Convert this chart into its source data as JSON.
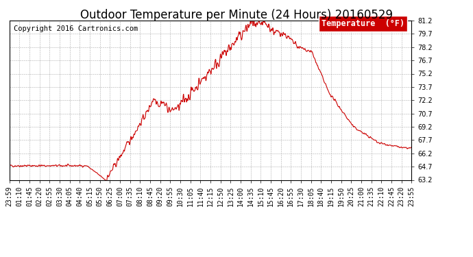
{
  "title": "Outdoor Temperature per Minute (24 Hours) 20160529",
  "copyright": "Copyright 2016 Cartronics.com",
  "legend_label": "Temperature  (°F)",
  "line_color": "#cc0000",
  "background_color": "#ffffff",
  "grid_color": "#999999",
  "ylim": [
    63.2,
    81.2
  ],
  "yticks": [
    63.2,
    64.7,
    66.2,
    67.7,
    69.2,
    70.7,
    72.2,
    73.7,
    75.2,
    76.7,
    78.2,
    79.7,
    81.2
  ],
  "xtick_labels": [
    "23:59",
    "01:10",
    "01:45",
    "02:20",
    "02:55",
    "03:30",
    "04:05",
    "04:40",
    "05:15",
    "05:50",
    "06:25",
    "07:00",
    "07:35",
    "08:10",
    "08:45",
    "09:20",
    "09:55",
    "10:30",
    "11:05",
    "11:40",
    "12:15",
    "12:50",
    "13:25",
    "14:00",
    "14:35",
    "15:10",
    "15:45",
    "16:20",
    "16:55",
    "17:30",
    "18:05",
    "18:40",
    "19:15",
    "19:50",
    "20:25",
    "21:00",
    "21:35",
    "22:10",
    "22:45",
    "23:20",
    "23:55"
  ],
  "title_fontsize": 12,
  "copyright_fontsize": 7.5,
  "tick_fontsize": 7,
  "legend_fontsize": 8.5
}
